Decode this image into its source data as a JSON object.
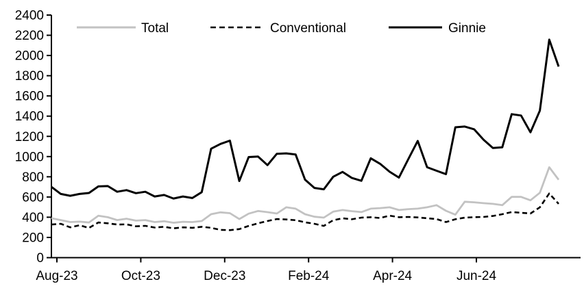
{
  "chart_data": {
    "type": "line",
    "title": "",
    "xlabel": "",
    "ylabel": "",
    "grid": false,
    "legend_position": "top-inside",
    "y_axis": {
      "min": 0,
      "max": 2400,
      "step": 200,
      "tick_labels": [
        "0",
        "200",
        "400",
        "600",
        "800",
        "1000",
        "1200",
        "1400",
        "1600",
        "1800",
        "2000",
        "2200",
        "2400"
      ]
    },
    "x_axis": {
      "tick_labels": [
        "Aug-23",
        "Oct-23",
        "Dec-23",
        "Feb-24",
        "Apr-24",
        "Jun-24"
      ]
    },
    "legend": [
      {
        "label": "Total",
        "color": "#c2c2c2",
        "style": "solid"
      },
      {
        "label": "Conventional",
        "color": "#000000",
        "style": "dashed"
      },
      {
        "label": "Ginnie",
        "color": "#000000",
        "style": "solid"
      }
    ],
    "series": [
      {
        "name": "Total",
        "color": "#c2c2c2",
        "style": "solid",
        "values": [
          390,
          372,
          352,
          356,
          348,
          415,
          400,
          372,
          385,
          366,
          372,
          352,
          360,
          345,
          355,
          352,
          362,
          430,
          448,
          440,
          382,
          435,
          462,
          450,
          437,
          498,
          485,
          430,
          405,
          396,
          455,
          471,
          460,
          451,
          485,
          490,
          498,
          471,
          480,
          485,
          498,
          519,
          464,
          425,
          553,
          548,
          539,
          532,
          519,
          601,
          601,
          567,
          642,
          894,
          771
        ]
      },
      {
        "name": "Conventional",
        "color": "#000000",
        "style": "dashed",
        "values": [
          328,
          335,
          300,
          320,
          294,
          348,
          340,
          328,
          330,
          310,
          315,
          298,
          305,
          290,
          300,
          295,
          305,
          295,
          275,
          272,
          282,
          314,
          340,
          362,
          382,
          378,
          370,
          350,
          335,
          314,
          370,
          389,
          380,
          396,
          400,
          392,
          416,
          400,
          403,
          398,
          390,
          382,
          352,
          380,
          396,
          400,
          403,
          412,
          430,
          451,
          444,
          437,
          498,
          635,
          532
        ]
      },
      {
        "name": "Ginnie",
        "color": "#000000",
        "style": "solid",
        "values": [
          700,
          630,
          612,
          630,
          640,
          705,
          708,
          652,
          668,
          638,
          652,
          605,
          620,
          585,
          605,
          590,
          648,
          1078,
          1125,
          1158,
          758,
          995,
          1000,
          915,
          1028,
          1032,
          1020,
          772,
          690,
          676,
          800,
          848,
          788,
          760,
          983,
          928,
          850,
          792,
          975,
          1155,
          894,
          860,
          826,
          1290,
          1297,
          1270,
          1167,
          1085,
          1092,
          1420,
          1406,
          1240,
          1454,
          2157,
          1890
        ]
      }
    ]
  }
}
